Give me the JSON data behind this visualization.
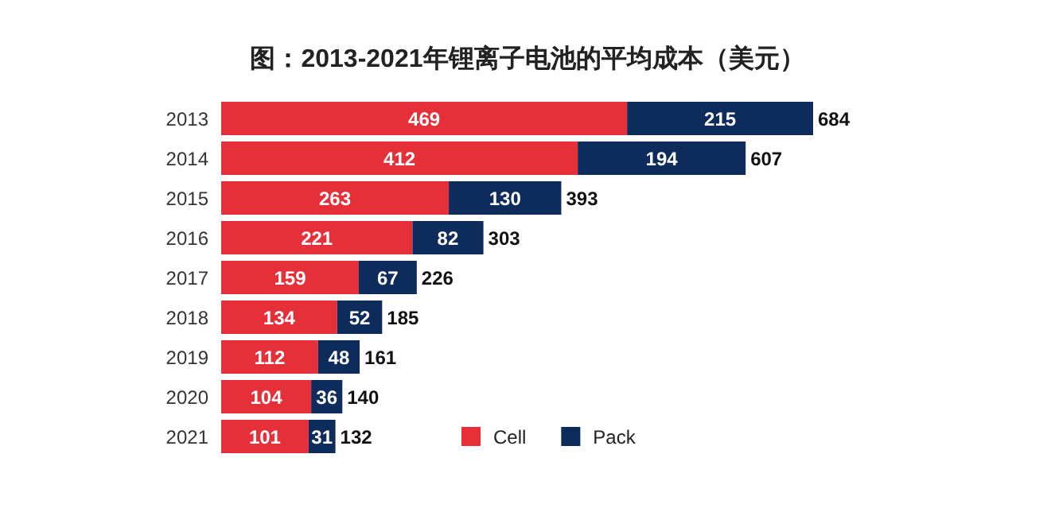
{
  "chart_data": {
    "type": "bar",
    "orientation": "horizontal",
    "stacked": true,
    "data_labels": true,
    "legend": "bottom",
    "title": "图：2013-2021年锂离子电池的平均成本（美元）",
    "categories": [
      "2013",
      "2014",
      "2015",
      "2016",
      "2017",
      "2018",
      "2019",
      "2020",
      "2021"
    ],
    "series": [
      {
        "name": "Cell",
        "color": "#e5303a",
        "values": [
          469,
          412,
          263,
          221,
          159,
          134,
          112,
          104,
          101
        ]
      },
      {
        "name": "Pack",
        "color": "#0d2b5b",
        "values": [
          215,
          194,
          130,
          82,
          67,
          52,
          48,
          36,
          31
        ]
      }
    ],
    "totals": [
      "684",
      "607",
      "393",
      "303",
      "226",
      "185",
      "161",
      "140",
      "132"
    ]
  }
}
